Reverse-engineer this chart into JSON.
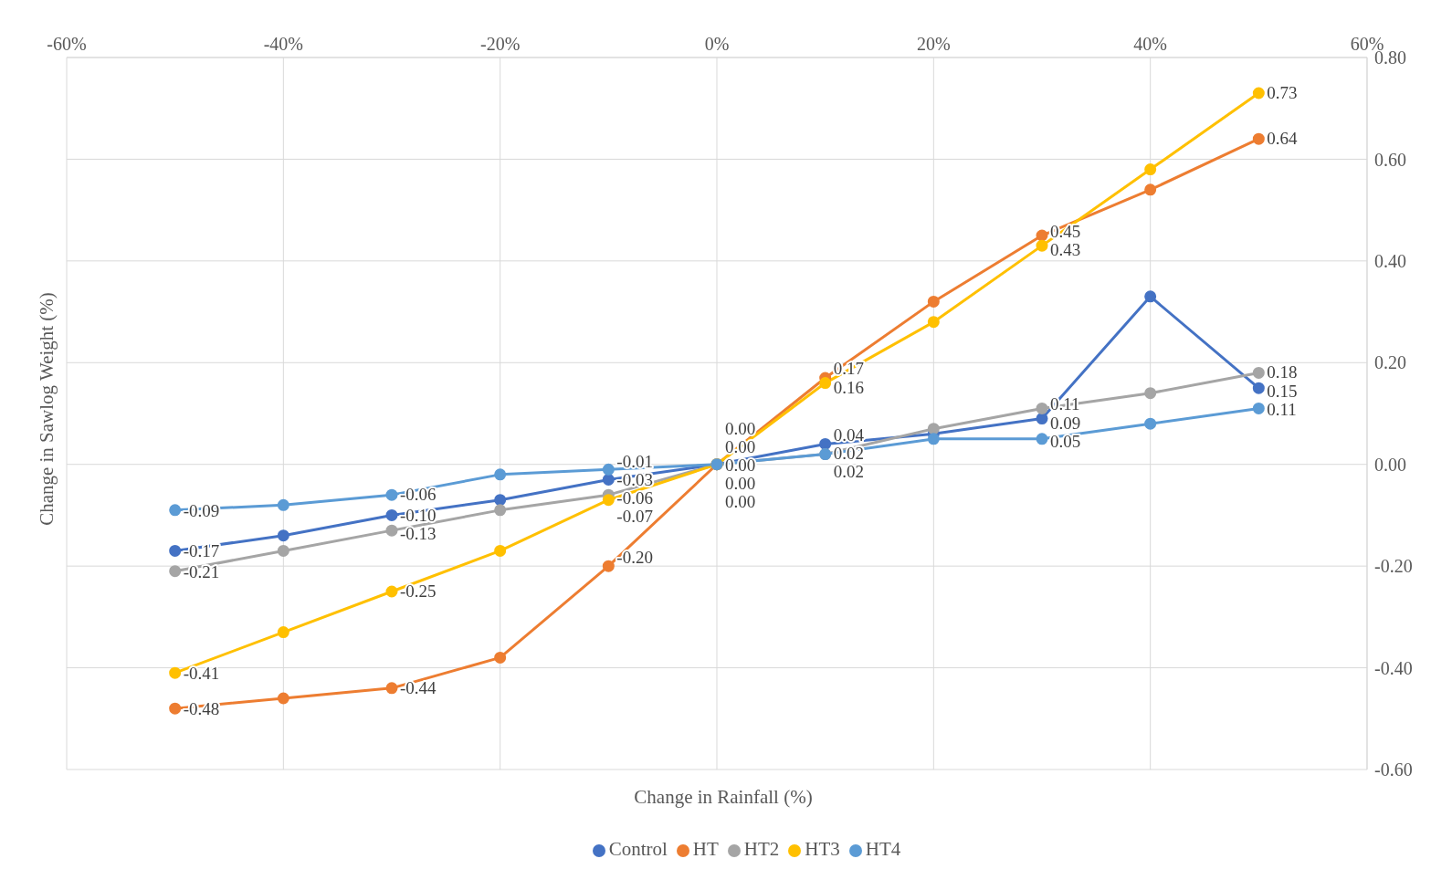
{
  "chart_data": {
    "type": "line",
    "xlabel": "Change in Rainfall (%)",
    "ylabel": "Change in Sawlog Weight (%)",
    "x": [
      -50,
      -40,
      -30,
      -20,
      -10,
      0,
      10,
      20,
      30,
      40,
      50
    ],
    "xlim": [
      -60,
      60
    ],
    "xticks": [
      {
        "value": -60,
        "label": "-60%"
      },
      {
        "value": -40,
        "label": "-40%"
      },
      {
        "value": -20,
        "label": "-20%"
      },
      {
        "value": 0,
        "label": "0%"
      },
      {
        "value": 20,
        "label": "20%"
      },
      {
        "value": 40,
        "label": "40%"
      },
      {
        "value": 60,
        "label": "60%"
      }
    ],
    "ylim": [
      -0.6,
      0.8
    ],
    "yticks": [
      {
        "value": -0.6,
        "label": "-0.60"
      },
      {
        "value": -0.4,
        "label": "-0.40"
      },
      {
        "value": -0.2,
        "label": "-0.20"
      },
      {
        "value": 0,
        "label": "0.00"
      },
      {
        "value": 0.2,
        "label": "0.20"
      },
      {
        "value": 0.4,
        "label": "0.40"
      },
      {
        "value": 0.6,
        "label": "0.60"
      },
      {
        "value": 0.8,
        "label": "0.80"
      }
    ],
    "grid": true,
    "legend": "bottom",
    "marker": "circle",
    "line_style": "solid",
    "series": [
      {
        "name": "Control",
        "color": "#4472c4",
        "values": [
          -0.17,
          -0.14,
          -0.1,
          -0.07,
          -0.03,
          0.0,
          0.04,
          0.06,
          0.09,
          0.33,
          0.15
        ],
        "value_labels": [
          "-0.17",
          null,
          "-0.10",
          null,
          "-0.03",
          "0.00",
          "0.04",
          null,
          "0.09",
          null,
          "0.15"
        ]
      },
      {
        "name": "HT",
        "color": "#ed7d31",
        "values": [
          -0.48,
          -0.46,
          -0.44,
          -0.38,
          -0.2,
          0.0,
          0.17,
          0.32,
          0.45,
          0.54,
          0.64
        ],
        "value_labels": [
          "-0.48",
          null,
          "-0.44",
          null,
          "-0.20",
          "0.00",
          "0.17",
          null,
          "0.45",
          null,
          "0.64"
        ]
      },
      {
        "name": "HT2",
        "color": "#a5a5a5",
        "values": [
          -0.21,
          -0.17,
          -0.13,
          -0.09,
          -0.06,
          0.0,
          0.02,
          0.07,
          0.11,
          0.14,
          0.18
        ],
        "value_labels": [
          "-0.21",
          null,
          "-0.13",
          null,
          "-0.06",
          "0.00",
          "0.02",
          null,
          "0.11",
          null,
          "0.18"
        ]
      },
      {
        "name": "HT3",
        "color": "#ffc000",
        "values": [
          -0.41,
          -0.33,
          -0.25,
          -0.17,
          -0.07,
          0.0,
          0.16,
          0.28,
          0.43,
          0.58,
          0.73
        ],
        "value_labels": [
          "-0.41",
          null,
          "-0.25",
          null,
          "-0.07",
          "0.00",
          "0.16",
          null,
          "0.43",
          null,
          "0.73"
        ]
      },
      {
        "name": "HT4",
        "color": "#5b9bd5",
        "values": [
          -0.09,
          -0.08,
          -0.06,
          -0.02,
          -0.01,
          0.0,
          0.02,
          0.05,
          0.05,
          0.08,
          0.11
        ],
        "value_labels": [
          "-0.09",
          null,
          "-0.06",
          null,
          "-0.01",
          "0.00",
          "0.02",
          null,
          "0.05",
          null,
          "0.11"
        ]
      }
    ]
  }
}
